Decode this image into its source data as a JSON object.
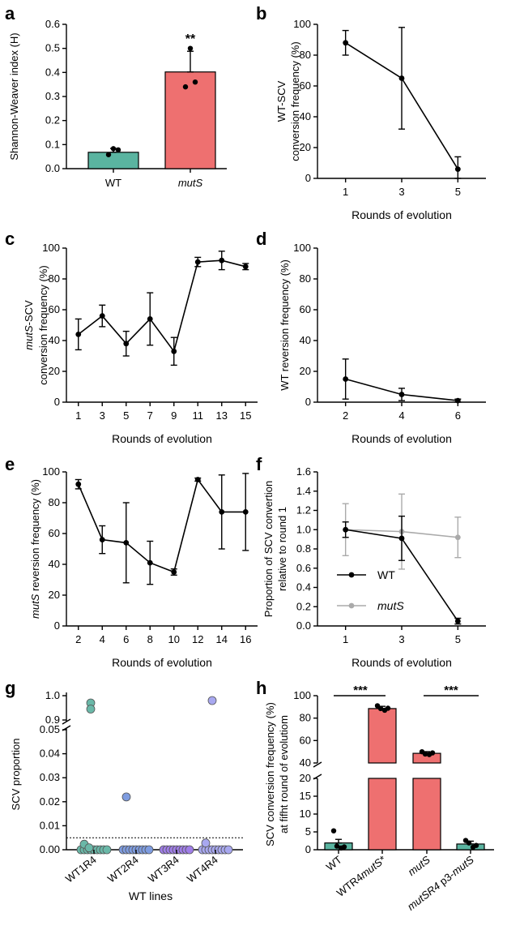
{
  "panels": {
    "a": {
      "letter": "a",
      "ylabel": "Shannon-Weaver index (H)",
      "ylim": [
        0,
        0.6
      ],
      "yticks": [
        "0.0",
        "0.1",
        "0.2",
        "0.3",
        "0.4",
        "0.5",
        "0.6"
      ],
      "ytick_values": [
        0,
        0.1,
        0.2,
        0.3,
        0.4,
        0.5,
        0.6
      ],
      "categories": [
        "WT",
        "mutS"
      ],
      "category_italic": [
        false,
        true
      ],
      "values": [
        0.068,
        0.402
      ],
      "errors": [
        0.016,
        0.086
      ],
      "points": [
        [
          0.058,
          0.078,
          0.083
        ],
        [
          0.34,
          0.36,
          0.5
        ]
      ],
      "colors": [
        "#5ab4a0",
        "#ee7070"
      ],
      "significance": "**"
    },
    "b": {
      "letter": "b",
      "ylabel_line1": "WT-SCV",
      "ylabel_line2": "conversion frequency (%)",
      "xlabel": "Rounds of evolution",
      "ylim": [
        0,
        100
      ],
      "yticks": [
        "0",
        "20",
        "40",
        "60",
        "80",
        "100"
      ],
      "ytick_values": [
        0,
        20,
        40,
        60,
        80,
        100
      ],
      "xticks": [
        "1",
        "3",
        "5"
      ],
      "x": [
        1,
        3,
        5
      ],
      "y": [
        88,
        65,
        6
      ],
      "err": [
        8,
        33,
        8
      ],
      "xlim": [
        0,
        6
      ]
    },
    "c": {
      "letter": "c",
      "ylabel_line1_italic": "mutS",
      "ylabel_line1_rest": "-SCV",
      "ylabel_line2": "conversion frequency (%)",
      "xlabel": "Rounds of evolution",
      "ylim": [
        0,
        100
      ],
      "yticks": [
        "0",
        "20",
        "40",
        "60",
        "80",
        "100"
      ],
      "ytick_values": [
        0,
        20,
        40,
        60,
        80,
        100
      ],
      "xticks": [
        "1",
        "3",
        "5",
        "7",
        "9",
        "11",
        "13",
        "15"
      ],
      "x": [
        1,
        3,
        5,
        7,
        9,
        11,
        13,
        15
      ],
      "y": [
        44,
        56,
        38,
        54,
        33,
        91,
        92,
        88
      ],
      "err": [
        10,
        7,
        8,
        17,
        9,
        3,
        6,
        2
      ],
      "xlim": [
        0,
        16
      ]
    },
    "d": {
      "letter": "d",
      "ylabel": "WT reversion frequency (%)",
      "xlabel": "Rounds of evolution",
      "ylim": [
        0,
        100
      ],
      "yticks": [
        "0",
        "20",
        "40",
        "60",
        "80",
        "100"
      ],
      "ytick_values": [
        0,
        20,
        40,
        60,
        80,
        100
      ],
      "xticks": [
        "2",
        "4",
        "6"
      ],
      "x": [
        2,
        4,
        6
      ],
      "y": [
        15,
        5,
        1
      ],
      "err": [
        13,
        4,
        1
      ],
      "xlim": [
        1,
        7
      ]
    },
    "e": {
      "letter": "e",
      "ylabel_italic": "mutS",
      "ylabel_rest": " reversion frequency (%)",
      "xlabel": "Rounds of evolution",
      "ylim": [
        0,
        100
      ],
      "yticks": [
        "0",
        "20",
        "40",
        "60",
        "80",
        "100"
      ],
      "ytick_values": [
        0,
        20,
        40,
        60,
        80,
        100
      ],
      "xticks": [
        "2",
        "4",
        "6",
        "8",
        "10",
        "12",
        "14",
        "16"
      ],
      "x": [
        2,
        4,
        6,
        8,
        10,
        12,
        14,
        16
      ],
      "y": [
        92,
        56,
        54,
        41,
        35,
        95,
        74,
        74
      ],
      "err": [
        3,
        9,
        26,
        14,
        2,
        1,
        24,
        25
      ],
      "xlim": [
        1,
        17
      ]
    },
    "f": {
      "letter": "f",
      "ylabel_line1": "Proportion of SCV convertion",
      "ylabel_line2": "relative to round 1",
      "xlabel": "Rounds of evolution",
      "ylim": [
        0,
        1.6
      ],
      "yticks": [
        "0.0",
        "0.2",
        "0.4",
        "0.6",
        "0.8",
        "1.0",
        "1.2",
        "1.4",
        "1.6"
      ],
      "ytick_values": [
        0,
        0.2,
        0.4,
        0.6,
        0.8,
        1.0,
        1.2,
        1.4,
        1.6
      ],
      "xticks": [
        "1",
        "3",
        "5"
      ],
      "x": [
        1,
        3,
        5
      ],
      "xlim": [
        0,
        6
      ],
      "series": [
        {
          "name": "WT",
          "italic": false,
          "color": "#000000",
          "y": [
            1.0,
            0.91,
            0.05
          ],
          "err": [
            0.08,
            0.23,
            0.03
          ]
        },
        {
          "name": "mutS",
          "italic": true,
          "color": "#aaaaaa",
          "y": [
            1.0,
            0.98,
            0.92
          ],
          "err": [
            0.27,
            0.39,
            0.21
          ]
        }
      ],
      "legend_position": "left-middle"
    },
    "g": {
      "letter": "g",
      "ylabel": "SCV proportion",
      "xlabel": "WT lines",
      "yticks_lower": [
        "0.00",
        "0.01",
        "0.02",
        "0.03",
        "0.04",
        "0.05"
      ],
      "yticks_lower_values": [
        0,
        0.01,
        0.02,
        0.03,
        0.04,
        0.05
      ],
      "yticks_upper": [
        "0.9",
        "1.0"
      ],
      "yticks_upper_values": [
        0.9,
        1.0
      ],
      "threshold": 0.005,
      "categories": [
        "WT1R4",
        "WT2R4",
        "WT3R4",
        "WT4R4"
      ],
      "colors": [
        "#6ab8a8",
        "#7e9ce0",
        "#a07ee8",
        "#a8a8f0"
      ],
      "high_points": [
        [
          0.97,
          0.945
        ],
        [],
        [],
        [
          0.98
        ]
      ],
      "low_points": [
        [
          0.0023,
          0.0008
        ],
        [
          0.022
        ],
        [],
        [
          0.0028
        ]
      ]
    },
    "h": {
      "letter": "h",
      "ylabel_line1": "SCV conversion frequency (%)",
      "ylabel_line2": "at fifht round of evolutiom",
      "yticks_upper": [
        "40",
        "60",
        "80",
        "100"
      ],
      "yticks_upper_values": [
        40,
        60,
        80,
        100
      ],
      "yticks_lower": [
        "0",
        "5",
        "10",
        "15",
        "20"
      ],
      "yticks_lower_values": [
        0,
        5,
        10,
        15,
        20
      ],
      "categories": [
        {
          "parts": [
            {
              "text": "WT",
              "italic": false
            }
          ]
        },
        {
          "parts": [
            {
              "text": "WTR4",
              "italic": false
            },
            {
              "text": "mutS*",
              "italic": true
            }
          ]
        },
        {
          "parts": [
            {
              "text": "mutS",
              "italic": true
            }
          ]
        },
        {
          "parts": [
            {
              "text": "mutSR4",
              "italic": true
            },
            {
              "text": " p3-",
              "italic": false
            },
            {
              "text": "mutS",
              "italic": true
            }
          ]
        }
      ],
      "values": [
        1.9,
        88.5,
        48.6,
        1.6
      ],
      "errors": [
        1.0,
        2.0,
        1.5,
        0.8
      ],
      "points": [
        [
          5.3,
          1.0,
          0.5,
          0.8
        ],
        [
          91.0,
          88.5,
          87.0,
          88.8
        ],
        [
          50.0,
          48.0,
          47.5,
          49.0
        ],
        [
          2.6,
          1.9,
          0.7,
          1.2
        ]
      ],
      "colors": [
        "#5ab4a0",
        "#ee7070",
        "#ee7070",
        "#5ab4a0"
      ],
      "significance": [
        "***",
        "***"
      ]
    }
  }
}
